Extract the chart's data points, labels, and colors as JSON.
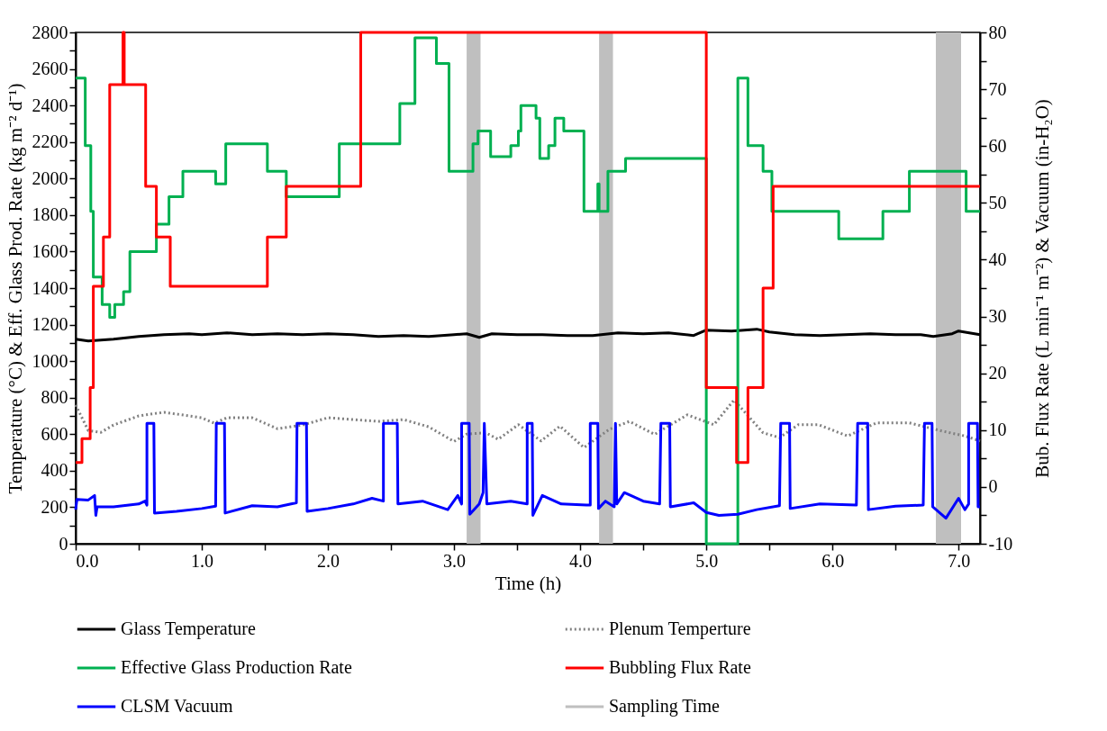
{
  "chart_data": {
    "type": "line",
    "xlabel": "Time (h)",
    "ylabel": "Temperature (°C) & Eff. Glass Prod. Rate (kg m⁻² d⁻¹)",
    "y2label": "Bub. Flux Rate (L min⁻¹ m⁻²) & Vacuum (in-H₂O)",
    "xlim": [
      0,
      7.17
    ],
    "xticks": [
      {
        "value": 0,
        "label": "0.0"
      },
      {
        "value": 0.5,
        "label": null
      },
      {
        "value": 1,
        "label": "1.0"
      },
      {
        "value": 1.5,
        "label": null
      },
      {
        "value": 2,
        "label": "2.0"
      },
      {
        "value": 2.5,
        "label": null
      },
      {
        "value": 3,
        "label": "3.0"
      },
      {
        "value": 3.5,
        "label": null
      },
      {
        "value": 4,
        "label": "4.0"
      },
      {
        "value": 4.5,
        "label": null
      },
      {
        "value": 5,
        "label": "5.0"
      },
      {
        "value": 5.5,
        "label": null
      },
      {
        "value": 6,
        "label": "6.0"
      },
      {
        "value": 6.5,
        "label": null
      },
      {
        "value": 7,
        "label": "7.0"
      }
    ],
    "ylim": [
      0,
      2800
    ],
    "yticks": [
      0,
      {
        "value": 100,
        "label": null
      },
      200,
      {
        "value": 300,
        "label": null
      },
      400,
      {
        "value": 500,
        "label": null
      },
      600,
      {
        "value": 700,
        "label": null
      },
      800,
      {
        "value": 900,
        "label": null
      },
      1000,
      {
        "value": 1100,
        "label": null
      },
      1200,
      {
        "value": 1300,
        "label": null
      },
      1400,
      {
        "value": 1500,
        "label": null
      },
      1600,
      {
        "value": 1700,
        "label": null
      },
      1800,
      {
        "value": 1900,
        "label": null
      },
      2000,
      {
        "value": 2100,
        "label": null
      },
      2200,
      {
        "value": 2300,
        "label": null
      },
      2400,
      {
        "value": 2500,
        "label": null
      },
      2600,
      {
        "value": 2700,
        "label": null
      },
      2800
    ],
    "y2lim": [
      -10,
      80
    ],
    "y2ticks": [
      -10,
      {
        "value": -5,
        "label": null
      },
      0,
      {
        "value": 5,
        "label": null
      },
      10,
      {
        "value": 15,
        "label": null
      },
      20,
      {
        "value": 25,
        "label": null
      },
      30,
      {
        "value": 35,
        "label": null
      },
      40,
      {
        "value": 45,
        "label": null
      },
      50,
      {
        "value": 55,
        "label": null
      },
      60,
      {
        "value": 65,
        "label": null
      },
      70,
      {
        "value": 75,
        "label": null
      },
      80
    ],
    "grid": false,
    "legend": "bottom",
    "marker": "none",
    "bands": [
      {
        "axis": "x",
        "from": 3.1,
        "to": 3.21,
        "label": "Sampling Time",
        "color": "#bfbfbf"
      },
      {
        "axis": "x",
        "from": 4.15,
        "to": 4.26,
        "color": "#bfbfbf"
      },
      {
        "axis": "x",
        "from": 6.82,
        "to": 7.02,
        "color": "#bfbfbf"
      }
    ],
    "series": [
      {
        "name": "Glass Temperature",
        "type": "line",
        "color": "#000000",
        "x": [
          0,
          0.1,
          0.3,
          0.5,
          0.7,
          0.9,
          1.0,
          1.2,
          1.4,
          1.6,
          1.8,
          2.0,
          2.2,
          2.4,
          2.6,
          2.8,
          3.0,
          3.1,
          3.2,
          3.3,
          3.5,
          3.7,
          3.9,
          4.1,
          4.3,
          4.5,
          4.7,
          4.9,
          5.0,
          5.2,
          5.4,
          5.5,
          5.7,
          5.9,
          6.1,
          6.3,
          6.5,
          6.7,
          6.8,
          6.95,
          7.0,
          7.17
        ],
        "values": [
          1120,
          1110,
          1120,
          1135,
          1145,
          1150,
          1145,
          1155,
          1145,
          1150,
          1145,
          1150,
          1145,
          1135,
          1140,
          1135,
          1145,
          1150,
          1130,
          1150,
          1145,
          1145,
          1140,
          1140,
          1155,
          1150,
          1155,
          1140,
          1170,
          1165,
          1175,
          1160,
          1145,
          1140,
          1145,
          1150,
          1145,
          1145,
          1135,
          1150,
          1165,
          1145
        ]
      },
      {
        "name": "Plenum Temperture",
        "type": "line",
        "line_style": "dotted",
        "color": "#808080",
        "x": [
          0,
          0.1,
          0.2,
          0.3,
          0.5,
          0.7,
          0.9,
          1.0,
          1.1,
          1.2,
          1.4,
          1.6,
          1.8,
          2.0,
          2.2,
          2.4,
          2.6,
          2.8,
          3.0,
          3.1,
          3.25,
          3.35,
          3.51,
          3.69,
          3.84,
          4.03,
          4.23,
          4.39,
          4.59,
          4.85,
          5.06,
          5.22,
          5.45,
          5.58,
          5.73,
          5.89,
          6.12,
          6.35,
          6.61,
          6.87,
          7.05,
          7.17
        ],
        "values": [
          760,
          620,
          610,
          650,
          700,
          720,
          700,
          690,
          660,
          690,
          690,
          630,
          650,
          690,
          680,
          670,
          680,
          640,
          560,
          600,
          608,
          572,
          652,
          563,
          644,
          527,
          626,
          670,
          599,
          706,
          652,
          787,
          608,
          581,
          652,
          652,
          590,
          662,
          662,
          617,
          590,
          563
        ]
      },
      {
        "name": "Effective Glass Production Rate",
        "type": "step",
        "color": "#00b050",
        "x": [
          0,
          0.076,
          0.12,
          0.14,
          0.21,
          0.27,
          0.31,
          0.38,
          0.43,
          0.64,
          0.74,
          0.85,
          1.11,
          1.19,
          1.52,
          1.67,
          2.09,
          2.57,
          2.69,
          2.86,
          2.96,
          3.15,
          3.19,
          3.29,
          3.45,
          3.51,
          3.53,
          3.65,
          3.68,
          3.75,
          3.8,
          3.87,
          4.03,
          4.14,
          4.15,
          4.22,
          4.36,
          5.0,
          5.25,
          5.33,
          5.45,
          5.52,
          6.05,
          6.4,
          6.61,
          7.06,
          7.17
        ],
        "values": [
          2550,
          2180,
          1820,
          1460,
          1310,
          1240,
          1310,
          1380,
          1600,
          1750,
          1900,
          2040,
          1970,
          2190,
          2040,
          1900,
          2190,
          2410,
          2770,
          2630,
          2040,
          2190,
          2260,
          2120,
          2180,
          2260,
          2400,
          2330,
          2110,
          2180,
          2330,
          2260,
          1820,
          1970,
          1820,
          2040,
          2110,
          0,
          2550,
          2180,
          2040,
          1820,
          1670,
          1820,
          2040,
          1820,
          1820
        ]
      },
      {
        "name": "Bubbling Flux Rate",
        "type": "step",
        "axis": "y2",
        "color": "#ff0000",
        "x": [
          0,
          0.05,
          0.115,
          0.14,
          0.22,
          0.27,
          0.375,
          0.385,
          0.555,
          0.64,
          0.75,
          1.52,
          1.67,
          2.26,
          5.0,
          5.24,
          5.33,
          5.45,
          5.53,
          7.17
        ],
        "values": [
          4.3,
          8.5,
          17.5,
          35.3,
          44.0,
          70.8,
          80,
          70.8,
          52.9,
          44.0,
          35.3,
          44.0,
          52.9,
          80,
          17.5,
          4.3,
          17.5,
          35.0,
          52.9,
          52.9
        ]
      },
      {
        "name": "CLSM Vacuum",
        "type": "line",
        "axis": "y2",
        "color": "#0000ff",
        "x": [
          0,
          0.01,
          0.1,
          0.15,
          0.16,
          0.17,
          0.3,
          0.5,
          0.55,
          0.565,
          0.565,
          0.62,
          0.625,
          0.8,
          1.0,
          1.11,
          1.115,
          1.18,
          1.185,
          1.4,
          1.6,
          1.75,
          1.755,
          1.83,
          1.835,
          2.0,
          2.2,
          2.35,
          2.44,
          2.44,
          2.55,
          2.555,
          2.75,
          2.95,
          3.03,
          3.06,
          3.06,
          3.12,
          3.125,
          3.2,
          3.23,
          3.24,
          3.26,
          3.45,
          3.58,
          3.58,
          3.62,
          3.625,
          3.7,
          3.85,
          4.05,
          4.08,
          4.08,
          4.14,
          4.145,
          4.2,
          4.27,
          4.28,
          4.29,
          4.35,
          4.5,
          4.63,
          4.64,
          4.71,
          4.715,
          4.9,
          5.0,
          5.1,
          5.25,
          5.4,
          5.58,
          5.59,
          5.66,
          5.665,
          5.9,
          6.19,
          6.2,
          6.28,
          6.285,
          6.5,
          6.72,
          6.73,
          6.79,
          6.795,
          6.9,
          7.0,
          7.05,
          7.08,
          7.08,
          7.15,
          7.155,
          7.17
        ],
        "values": [
          -4,
          -2.2,
          -2.3,
          -1.5,
          -5,
          -3.5,
          -3.5,
          -3,
          -2.5,
          -3.2,
          11.2,
          11.2,
          -4.6,
          -4.3,
          -3.8,
          -3.4,
          11.2,
          11.2,
          -4.6,
          -3.3,
          -3.5,
          -2.8,
          11.2,
          11.2,
          -4.3,
          -3.8,
          -3,
          -2,
          -2.5,
          11.2,
          11.2,
          -3,
          -2.5,
          -4,
          -1.5,
          -3,
          11.2,
          11.2,
          -4.8,
          -3,
          -1,
          11.2,
          -3,
          -2.5,
          -3,
          11.2,
          11.2,
          -5,
          -1.5,
          -3,
          -3.2,
          -3.2,
          11.2,
          11.2,
          -3.8,
          -2.5,
          -3.5,
          11.2,
          -3,
          -1,
          -2.5,
          -3,
          11.2,
          11.2,
          -3.5,
          -2.8,
          -4.5,
          -5,
          -4.8,
          -4,
          -3.3,
          11.2,
          11.2,
          -3.8,
          -3,
          -3.2,
          11.2,
          11.2,
          -4,
          -3.4,
          -3.2,
          11.2,
          11.2,
          -3.5,
          -5.5,
          -2,
          -4,
          -3,
          11.2,
          11.2,
          -3.5,
          -3.5
        ]
      }
    ]
  }
}
